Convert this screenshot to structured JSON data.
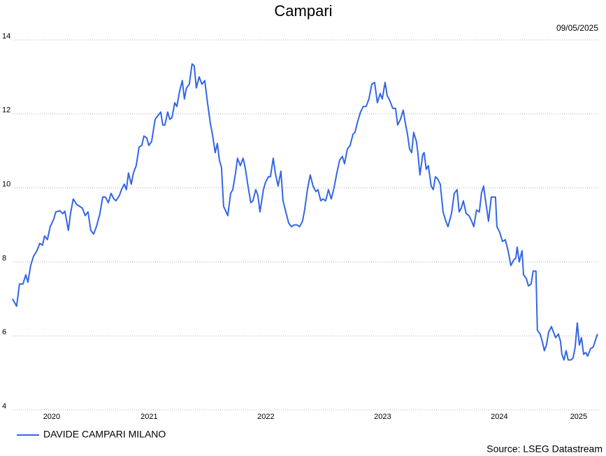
{
  "chart_data": {
    "type": "line",
    "title": "Campari",
    "date": "09/05/2025",
    "source": "Source: LSEG Datastream",
    "xlim": [
      2020.33,
      2025.36
    ],
    "xticks": [
      2020,
      2021,
      2022,
      2023,
      2024,
      2025
    ],
    "ylim": [
      4,
      14
    ],
    "yticks": [
      4,
      6,
      8,
      10,
      12,
      14
    ],
    "grid": true,
    "legend": "bottom-left",
    "x": [
      2020.329,
      2020.365,
      2020.389,
      2020.419,
      2020.443,
      2020.461,
      2020.485,
      2020.509,
      2020.539,
      2020.563,
      2020.586,
      2020.604,
      2020.628,
      2020.652,
      2020.682,
      2020.7,
      2020.736,
      2020.76,
      2020.778,
      2020.808,
      2020.826,
      2020.85,
      2020.88,
      2020.904,
      2020.928,
      2020.952,
      2020.976,
      2021.0,
      2021.024,
      2021.048,
      2021.078,
      2021.102,
      2021.126,
      2021.15,
      2021.174,
      2021.198,
      2021.216,
      2021.246,
      2021.263,
      2021.287,
      2021.305,
      2021.323,
      2021.347,
      2021.365,
      2021.389,
      2021.413,
      2021.437,
      2021.455,
      2021.479,
      2021.497,
      2021.521,
      2021.551,
      2021.575,
      2021.599,
      2021.617,
      2021.635,
      2021.659,
      2021.677,
      2021.695,
      2021.719,
      2021.737,
      2021.76,
      2021.784,
      2021.802,
      2021.82,
      2021.844,
      2021.868,
      2021.886,
      2021.904,
      2021.928,
      2021.952,
      2021.976,
      2022.0,
      2022.024,
      2022.042,
      2022.066,
      2022.084,
      2022.102,
      2022.12,
      2022.138,
      2022.174,
      2022.198,
      2022.216,
      2022.24,
      2022.257,
      2022.281,
      2022.305,
      2022.323,
      2022.347,
      2022.371,
      2022.389,
      2022.413,
      2022.431,
      2022.449,
      2022.479,
      2022.497,
      2022.521,
      2022.539,
      2022.563,
      2022.581,
      2022.605,
      2022.629,
      2022.647,
      2022.671,
      2022.695,
      2022.719,
      2022.743,
      2022.766,
      2022.79,
      2022.814,
      2022.832,
      2022.856,
      2022.88,
      2022.904,
      2022.928,
      2022.946,
      2022.97,
      2022.988,
      2023.012,
      2023.036,
      2023.06,
      2023.084,
      2023.108,
      2023.132,
      2023.156,
      2023.174,
      2023.198,
      2023.222,
      2023.246,
      2023.263,
      2023.287,
      2023.311,
      2023.335,
      2023.359,
      2023.383,
      2023.407,
      2023.431,
      2023.455,
      2023.479,
      2023.497,
      2023.521,
      2023.539,
      2023.563,
      2023.587,
      2023.611,
      2023.629,
      2023.653,
      2023.677,
      2023.695,
      2023.713,
      2023.731,
      2023.749,
      2023.766,
      2023.79,
      2023.802,
      2023.82,
      2023.844,
      2023.856,
      2023.874,
      2023.892,
      2023.916,
      2023.934,
      2023.952,
      2023.97,
      2023.994,
      2024.018,
      2024.042,
      2024.06,
      2024.09,
      2024.114,
      2024.138,
      2024.156,
      2024.174,
      2024.192,
      2024.216,
      2024.24,
      2024.263,
      2024.281,
      2024.305,
      2024.329,
      2024.347,
      2024.365,
      2024.389,
      2024.407,
      2024.431,
      2024.449,
      2024.467,
      2024.479,
      2024.503,
      2024.527,
      2024.551,
      2024.575,
      2024.599,
      2024.623,
      2024.641,
      2024.653,
      2024.671,
      2024.695,
      2024.707,
      2024.731,
      2024.749,
      2024.772,
      2024.79,
      2024.814,
      2024.826,
      2024.85,
      2024.868,
      2024.886,
      2024.904,
      2024.922,
      2024.946,
      2024.964,
      2024.982,
      2025.006,
      2025.024,
      2025.036,
      2025.054,
      2025.072,
      2025.09,
      2025.114,
      2025.132,
      2025.15,
      2025.168,
      2025.186,
      2025.204,
      2025.222,
      2025.24,
      2025.257,
      2025.281,
      2025.305,
      2025.341
    ],
    "series": [
      {
        "name": "DAVIDE CAMPARI MILANO",
        "color": "#3366e6",
        "values": [
          7.0,
          6.8,
          7.4,
          7.4,
          7.65,
          7.45,
          7.9,
          8.15,
          8.3,
          8.5,
          8.45,
          8.7,
          8.6,
          8.95,
          9.15,
          9.35,
          9.38,
          9.3,
          9.37,
          8.85,
          9.3,
          9.7,
          9.55,
          9.5,
          9.45,
          9.25,
          9.35,
          8.85,
          8.75,
          8.95,
          9.3,
          9.75,
          9.75,
          9.6,
          9.85,
          9.7,
          9.65,
          9.8,
          9.95,
          10.1,
          9.95,
          10.4,
          10.1,
          10.4,
          10.6,
          11.1,
          11.15,
          11.4,
          11.35,
          11.15,
          11.25,
          11.85,
          11.95,
          12.05,
          11.7,
          11.7,
          12.05,
          11.85,
          11.9,
          12.3,
          12.2,
          12.6,
          12.9,
          12.4,
          12.7,
          12.8,
          13.35,
          13.3,
          12.7,
          13.0,
          12.8,
          12.9,
          12.3,
          11.75,
          11.45,
          10.95,
          11.2,
          10.75,
          10.55,
          9.5,
          9.25,
          9.85,
          9.95,
          10.4,
          10.8,
          10.6,
          10.8,
          10.55,
          10.05,
          9.6,
          9.65,
          9.95,
          9.8,
          9.35,
          9.95,
          10.15,
          10.3,
          10.3,
          10.8,
          10.4,
          10.05,
          10.45,
          9.65,
          9.35,
          9.05,
          8.95,
          9.0,
          9.0,
          8.95,
          9.1,
          9.4,
          9.95,
          10.35,
          10.05,
          9.9,
          9.95,
          9.65,
          9.7,
          9.65,
          9.95,
          9.7,
          10.0,
          10.4,
          10.75,
          10.85,
          10.65,
          11.05,
          11.15,
          11.45,
          11.5,
          11.8,
          12.05,
          12.2,
          12.2,
          12.4,
          12.8,
          12.85,
          12.3,
          12.55,
          12.4,
          12.85,
          12.5,
          12.35,
          12.15,
          12.15,
          11.7,
          11.85,
          12.1,
          11.75,
          11.45,
          11.05,
          10.95,
          11.5,
          11.25,
          10.95,
          10.35,
          10.9,
          10.95,
          10.5,
          10.6,
          10.05,
          9.95,
          10.3,
          10.25,
          10.1,
          9.35,
          9.1,
          8.95,
          9.3,
          9.85,
          9.95,
          9.35,
          9.45,
          9.65,
          9.3,
          9.25,
          9.1,
          8.95,
          9.4,
          9.35,
          9.85,
          10.05,
          9.5,
          9.1,
          9.75,
          9.75,
          9.75,
          8.95,
          8.8,
          8.55,
          8.6,
          8.3,
          7.9,
          8.05,
          8.1,
          8.4,
          8.0,
          8.3,
          7.65,
          7.55,
          7.35,
          7.4,
          7.75,
          7.75,
          6.15,
          6.05,
          5.85,
          5.6,
          5.75,
          6.1,
          6.25,
          6.1,
          5.95,
          6.05,
          5.85,
          5.5,
          5.35,
          5.6,
          5.35,
          5.35,
          5.4,
          5.7,
          6.35,
          5.75,
          5.95,
          5.5,
          5.55,
          5.45,
          5.65,
          5.7,
          6.05
        ]
      }
    ]
  }
}
